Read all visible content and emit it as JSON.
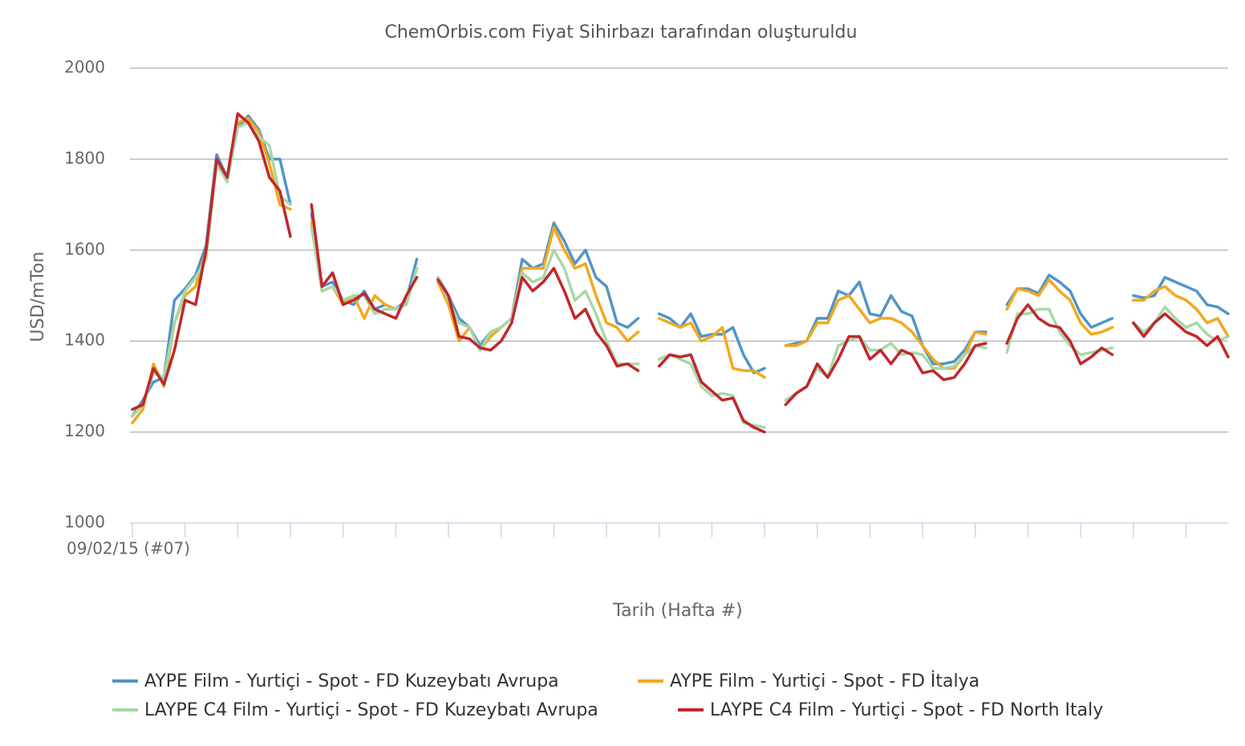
{
  "chart_data": {
    "type": "line",
    "title": "ChemOrbis.com Fiyat Sihirbazı tarafından oluşturuldu",
    "y_label": "USD/mTon",
    "x_label": "Tarih (Hafta #)",
    "ylim": [
      1000,
      2000
    ],
    "yticks": [
      1000,
      1200,
      1400,
      1600,
      1800,
      2000
    ],
    "grid": true,
    "categories": [
      "09/02/15 (#07)",
      null,
      null,
      null,
      null,
      null,
      null,
      null,
      null,
      null,
      null,
      null,
      null,
      null,
      null,
      null,
      null,
      null,
      null,
      null,
      null,
      null,
      null,
      null,
      null,
      null,
      null,
      null,
      null,
      null,
      null,
      null,
      null,
      null,
      null,
      null,
      null,
      null,
      null,
      null,
      null,
      null,
      null,
      null,
      null,
      null,
      null,
      null,
      null,
      null,
      null,
      null,
      null,
      null,
      null,
      null,
      null,
      null,
      null,
      null,
      null,
      null,
      null,
      null,
      null,
      null,
      null,
      null,
      null,
      null,
      null,
      null,
      null,
      null,
      null,
      null,
      null,
      null,
      null,
      null,
      null,
      null,
      null,
      null,
      null,
      null,
      null,
      null,
      null,
      null,
      null,
      null,
      null,
      null,
      null,
      null,
      null,
      null,
      null,
      null,
      null,
      null,
      null,
      null,
      null
    ],
    "series": [
      {
        "name": "AYPE Film - Yurtiçi - Spot - FD Kuzeybatı Avrupa",
        "color": "#4f95c8",
        "values": [
          1235,
          1270,
          1310,
          1320,
          1490,
          1515,
          1545,
          1610,
          1810,
          1760,
          1870,
          1895,
          1865,
          1800,
          1800,
          1700,
          null,
          1680,
          1520,
          1530,
          1490,
          1480,
          1510,
          1470,
          1480,
          1470,
          1490,
          1580,
          null,
          1540,
          1500,
          1450,
          1430,
          1390,
          1420,
          1430,
          1450,
          1580,
          1560,
          1570,
          1660,
          1620,
          1570,
          1600,
          1540,
          1520,
          1440,
          1430,
          1450,
          null,
          1460,
          1450,
          1430,
          1460,
          1410,
          1415,
          1415,
          1430,
          1370,
          1330,
          1340,
          null,
          1390,
          1395,
          1400,
          1450,
          1450,
          1510,
          1500,
          1530,
          1460,
          1455,
          1500,
          1465,
          1455,
          1390,
          1350,
          1350,
          1355,
          1380,
          1420,
          1420,
          null,
          1480,
          1515,
          1515,
          1505,
          1545,
          1530,
          1510,
          1460,
          1430,
          1440,
          1450,
          null,
          1500,
          1495,
          1500,
          1540,
          1530,
          1520,
          1510,
          1480,
          1475,
          1460
        ]
      },
      {
        "name": "AYPE Film - Yurtiçi - Spot - FD İtalya",
        "color": "#f2a81d",
        "values": [
          1220,
          1250,
          1350,
          1300,
          1440,
          1500,
          1520,
          1600,
          1800,
          1750,
          1880,
          1890,
          1860,
          1790,
          1700,
          1690,
          null,
          1660,
          1510,
          1520,
          1480,
          1500,
          1450,
          1500,
          1480,
          1470,
          1480,
          1560,
          null,
          1530,
          1480,
          1400,
          1430,
          1380,
          1410,
          1430,
          1450,
          1560,
          1560,
          1560,
          1650,
          1600,
          1560,
          1570,
          1500,
          1440,
          1430,
          1400,
          1420,
          null,
          1450,
          1440,
          1430,
          1440,
          1400,
          1410,
          1430,
          1340,
          1335,
          1335,
          1320,
          null,
          1390,
          1390,
          1400,
          1440,
          1440,
          1490,
          1500,
          1470,
          1440,
          1450,
          1450,
          1440,
          1420,
          1390,
          1360,
          1340,
          1340,
          1370,
          1420,
          1415,
          null,
          1470,
          1515,
          1510,
          1500,
          1535,
          1510,
          1490,
          1440,
          1415,
          1420,
          1430,
          null,
          1490,
          1490,
          1510,
          1520,
          1500,
          1490,
          1470,
          1440,
          1450,
          1410
        ]
      },
      {
        "name": "LAYPE C4 Film - Yurtiçi - Spot - FD Kuzeybatı Avrupa",
        "color": "#a8d8a6",
        "values": [
          1235,
          1260,
          1330,
          1320,
          1440,
          1510,
          1540,
          1580,
          1790,
          1750,
          1870,
          1880,
          1850,
          1830,
          1720,
          1700,
          null,
          1650,
          1510,
          1520,
          1490,
          1500,
          1500,
          1460,
          1470,
          1470,
          1480,
          1560,
          null,
          1540,
          1490,
          1440,
          1430,
          1380,
          1420,
          1430,
          1450,
          1550,
          1530,
          1540,
          1600,
          1560,
          1490,
          1510,
          1460,
          1400,
          1350,
          1350,
          1350,
          null,
          1360,
          1370,
          1360,
          1350,
          1300,
          1280,
          1285,
          1280,
          1220,
          1215,
          1210,
          null,
          1270,
          1285,
          1300,
          1340,
          1320,
          1390,
          1400,
          1410,
          1380,
          1380,
          1395,
          1370,
          1375,
          1370,
          1340,
          1340,
          1345,
          1370,
          1390,
          1385,
          null,
          1375,
          1460,
          1460,
          1470,
          1470,
          1420,
          1390,
          1370,
          1375,
          1380,
          1385,
          null,
          1440,
          1420,
          1440,
          1475,
          1450,
          1430,
          1440,
          1415,
          1400,
          1410
        ]
      },
      {
        "name": "LAYPE C4 Film - Yurtiçi - Spot - FD North Italy",
        "color": "#c0272d",
        "values": [
          1250,
          1260,
          1340,
          1305,
          1380,
          1490,
          1480,
          1600,
          1800,
          1760,
          1900,
          1880,
          1840,
          1760,
          1730,
          1630,
          null,
          1700,
          1520,
          1550,
          1480,
          1490,
          1505,
          1470,
          1460,
          1450,
          1500,
          1540,
          null,
          1535,
          1500,
          1410,
          1405,
          1385,
          1380,
          1400,
          1440,
          1540,
          1510,
          1530,
          1560,
          1510,
          1450,
          1470,
          1420,
          1390,
          1345,
          1350,
          1335,
          null,
          1345,
          1370,
          1365,
          1370,
          1310,
          1290,
          1270,
          1275,
          1225,
          1210,
          1200,
          null,
          1260,
          1285,
          1300,
          1350,
          1320,
          1360,
          1410,
          1410,
          1360,
          1380,
          1350,
          1380,
          1370,
          1330,
          1335,
          1315,
          1320,
          1350,
          1390,
          1395,
          null,
          1395,
          1450,
          1480,
          1450,
          1435,
          1430,
          1400,
          1350,
          1365,
          1385,
          1370,
          null,
          1440,
          1410,
          1440,
          1460,
          1440,
          1420,
          1410,
          1390,
          1410,
          1365
        ]
      }
    ]
  }
}
